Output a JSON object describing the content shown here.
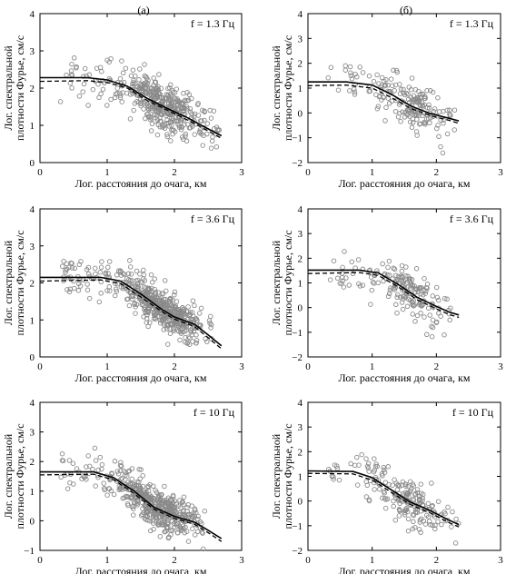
{
  "header": {
    "left": "(а)",
    "right": "(б)"
  },
  "chart_data": [
    {
      "type": "scatter",
      "panel": "a1",
      "freq": "f = 1.3 Гц",
      "xlabel": "Лог. расстояния до очага, км",
      "ylabel": [
        "Лог. спектральной",
        "плотности Фурье, см/с"
      ],
      "xlim": [
        0,
        3
      ],
      "ylim": [
        0,
        4
      ],
      "xticks": [
        "0",
        "1",
        "2",
        "3"
      ],
      "yticks": [
        "0",
        "1",
        "2",
        "3",
        "4"
      ],
      "scatter": {
        "x_range": [
          0.3,
          2.7
        ],
        "density_center": 1.8,
        "count": 420,
        "spread": 0.32
      },
      "series": [
        {
          "style": "solid",
          "points": [
            [
              0,
              2.28
            ],
            [
              0.7,
              2.28
            ],
            [
              1.0,
              2.22
            ],
            [
              1.3,
              2.05
            ],
            [
              1.6,
              1.72
            ],
            [
              1.9,
              1.45
            ],
            [
              2.2,
              1.2
            ],
            [
              2.4,
              1.0
            ],
            [
              2.7,
              0.72
            ]
          ]
        },
        {
          "style": "dashed",
          "points": [
            [
              0,
              2.18
            ],
            [
              0.7,
              2.2
            ],
            [
              1.0,
              2.15
            ],
            [
              1.3,
              2.0
            ],
            [
              1.6,
              1.66
            ],
            [
              1.9,
              1.4
            ],
            [
              2.2,
              1.14
            ],
            [
              2.4,
              0.95
            ],
            [
              2.7,
              0.65
            ]
          ]
        }
      ]
    },
    {
      "type": "scatter",
      "panel": "b1",
      "freq": "f = 1.3 Гц",
      "xlabel": "Лог. расстояния до очага, км",
      "ylabel": [
        "Лог. спектральной",
        "плотности Фурье, см/с"
      ],
      "xlim": [
        0,
        3
      ],
      "ylim": [
        -2,
        4
      ],
      "xticks": [
        "0",
        "1",
        "2",
        "3"
      ],
      "yticks": [
        "−2",
        "−1",
        "0",
        "1",
        "2",
        "3",
        "4"
      ],
      "scatter": {
        "x_range": [
          0.3,
          2.35
        ],
        "density_center": 1.6,
        "count": 190,
        "spread": 0.45
      },
      "series": [
        {
          "style": "solid",
          "points": [
            [
              0,
              1.25
            ],
            [
              0.6,
              1.25
            ],
            [
              1.0,
              1.12
            ],
            [
              1.3,
              0.75
            ],
            [
              1.6,
              0.28
            ],
            [
              1.9,
              -0.02
            ],
            [
              2.2,
              -0.22
            ],
            [
              2.35,
              -0.32
            ]
          ]
        },
        {
          "style": "dashed",
          "points": [
            [
              0,
              1.1
            ],
            [
              0.6,
              1.12
            ],
            [
              1.0,
              1.0
            ],
            [
              1.3,
              0.62
            ],
            [
              1.6,
              0.18
            ],
            [
              1.9,
              -0.1
            ],
            [
              2.2,
              -0.3
            ],
            [
              2.35,
              -0.42
            ]
          ]
        }
      ]
    },
    {
      "type": "scatter",
      "panel": "a2",
      "freq": "f = 3.6 Гц",
      "xlabel": "Лог. расстояния до очага, км",
      "ylabel": [
        "Лог. спектральной",
        "плотности Фурье, см/с"
      ],
      "xlim": [
        0,
        3
      ],
      "ylim": [
        0,
        4
      ],
      "xticks": [
        "0",
        "1",
        "2",
        "3"
      ],
      "yticks": [
        "0",
        "1",
        "2",
        "3",
        "4"
      ],
      "scatter": {
        "x_range": [
          0.3,
          2.55
        ],
        "density_center": 1.8,
        "count": 520,
        "spread": 0.28
      },
      "series": [
        {
          "style": "solid",
          "points": [
            [
              0,
              2.15
            ],
            [
              0.9,
              2.15
            ],
            [
              1.2,
              2.05
            ],
            [
              1.5,
              1.7
            ],
            [
              1.8,
              1.3
            ],
            [
              2.0,
              1.08
            ],
            [
              2.3,
              0.88
            ],
            [
              2.5,
              0.6
            ],
            [
              2.7,
              0.3
            ]
          ]
        },
        {
          "style": "dashed",
          "points": [
            [
              0,
              2.05
            ],
            [
              0.9,
              2.08
            ],
            [
              1.2,
              1.98
            ],
            [
              1.5,
              1.62
            ],
            [
              1.8,
              1.24
            ],
            [
              2.0,
              1.02
            ],
            [
              2.3,
              0.82
            ],
            [
              2.5,
              0.52
            ],
            [
              2.7,
              0.22
            ]
          ]
        }
      ]
    },
    {
      "type": "scatter",
      "panel": "b2",
      "freq": "f = 3.6 Гц",
      "xlabel": "Лог. расстояния до очага, км",
      "ylabel": [
        "Лог. спектральной",
        "плотности Фурье, см/с"
      ],
      "xlim": [
        0,
        3
      ],
      "ylim": [
        -2,
        4
      ],
      "xticks": [
        "0",
        "1",
        "2",
        "3"
      ],
      "yticks": [
        "−2",
        "−1",
        "0",
        "1",
        "2",
        "3",
        "4"
      ],
      "scatter": {
        "x_range": [
          0.3,
          2.35
        ],
        "density_center": 1.6,
        "count": 180,
        "spread": 0.45
      },
      "series": [
        {
          "style": "solid",
          "points": [
            [
              0,
              1.52
            ],
            [
              0.8,
              1.52
            ],
            [
              1.1,
              1.4
            ],
            [
              1.4,
              0.95
            ],
            [
              1.7,
              0.42
            ],
            [
              2.0,
              0.05
            ],
            [
              2.2,
              -0.18
            ],
            [
              2.35,
              -0.3
            ]
          ]
        },
        {
          "style": "dashed",
          "points": [
            [
              0,
              1.38
            ],
            [
              0.8,
              1.42
            ],
            [
              1.1,
              1.3
            ],
            [
              1.4,
              0.85
            ],
            [
              1.7,
              0.32
            ],
            [
              2.0,
              -0.05
            ],
            [
              2.2,
              -0.28
            ],
            [
              2.35,
              -0.4
            ]
          ]
        }
      ]
    },
    {
      "type": "scatter",
      "panel": "a3",
      "freq": "f = 10 Гц",
      "xlabel": "Лог. расстояния до очага, км",
      "ylabel": [
        "Лог. спектральной",
        "плотности Фурье, см/с"
      ],
      "xlim": [
        0,
        3
      ],
      "ylim": [
        -1,
        4
      ],
      "xticks": [
        "0",
        "1",
        "2",
        "3"
      ],
      "yticks": [
        "−1",
        "0",
        "1",
        "2",
        "3",
        "4"
      ],
      "scatter": {
        "x_range": [
          0.3,
          2.45
        ],
        "density_center": 1.75,
        "count": 480,
        "spread": 0.35
      },
      "series": [
        {
          "style": "solid",
          "points": [
            [
              0,
              1.65
            ],
            [
              0.8,
              1.65
            ],
            [
              1.1,
              1.45
            ],
            [
              1.4,
              1.0
            ],
            [
              1.7,
              0.45
            ],
            [
              2.0,
              0.15
            ],
            [
              2.3,
              -0.05
            ],
            [
              2.5,
              -0.32
            ],
            [
              2.7,
              -0.6
            ]
          ]
        },
        {
          "style": "dashed",
          "points": [
            [
              0,
              1.55
            ],
            [
              0.8,
              1.57
            ],
            [
              1.1,
              1.38
            ],
            [
              1.4,
              0.92
            ],
            [
              1.7,
              0.38
            ],
            [
              2.0,
              0.08
            ],
            [
              2.3,
              -0.12
            ],
            [
              2.5,
              -0.4
            ],
            [
              2.7,
              -0.7
            ]
          ]
        }
      ]
    },
    {
      "type": "scatter",
      "panel": "b3",
      "freq": "f = 10 Гц",
      "xlabel": "Лог. расстояния до очага, км",
      "ylabel": [
        "Лог. спектральной",
        "плотности Фурье, см/с"
      ],
      "xlim": [
        0,
        3
      ],
      "ylim": [
        -2,
        4
      ],
      "xticks": [
        "0",
        "1",
        "2",
        "3"
      ],
      "yticks": [
        "−2",
        "−1",
        "0",
        "1",
        "2",
        "3",
        "4"
      ],
      "scatter": {
        "x_range": [
          0.3,
          2.35
        ],
        "density_center": 1.55,
        "count": 200,
        "spread": 0.45
      },
      "series": [
        {
          "style": "solid",
          "points": [
            [
              0,
              1.22
            ],
            [
              0.7,
              1.2
            ],
            [
              1.0,
              0.95
            ],
            [
              1.3,
              0.45
            ],
            [
              1.6,
              -0.05
            ],
            [
              1.9,
              -0.38
            ],
            [
              2.2,
              -0.78
            ],
            [
              2.35,
              -0.95
            ]
          ]
        },
        {
          "style": "dashed",
          "points": [
            [
              0,
              1.12
            ],
            [
              0.7,
              1.1
            ],
            [
              1.0,
              0.85
            ],
            [
              1.3,
              0.35
            ],
            [
              1.6,
              -0.15
            ],
            [
              1.9,
              -0.48
            ],
            [
              2.2,
              -0.88
            ],
            [
              2.35,
              -1.05
            ]
          ]
        }
      ]
    }
  ]
}
